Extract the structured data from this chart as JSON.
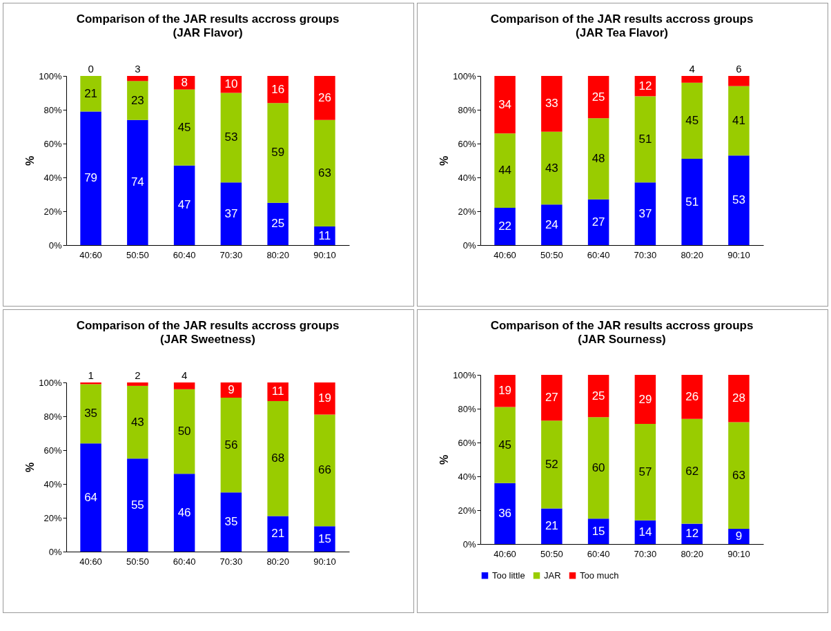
{
  "chart_data": [
    {
      "type": "bar",
      "title": "Comparison of the JAR results accross groups",
      "subtitle": "(JAR Flavor)",
      "ylabel": "%",
      "categories": [
        "40:60",
        "50:50",
        "60:40",
        "70:30",
        "80:20",
        "90:10"
      ],
      "stacked": true,
      "data_labels": true,
      "ylim": [
        0,
        100
      ],
      "yticks": [
        {
          "value": 0,
          "label": "0%"
        },
        {
          "value": 20,
          "label": "20%"
        },
        {
          "value": 40,
          "label": "40%"
        },
        {
          "value": 60,
          "label": "60%"
        },
        {
          "value": 80,
          "label": "80%"
        },
        {
          "value": 100,
          "label": "100%"
        }
      ],
      "legend": false,
      "series": [
        {
          "color": "#0000ff",
          "values": [
            79,
            74,
            47,
            37,
            25,
            11
          ]
        },
        {
          "color": "#99cc00",
          "values": [
            21,
            23,
            45,
            53,
            59,
            63
          ]
        },
        {
          "color": "#ff0000",
          "values": [
            0,
            3,
            8,
            10,
            16,
            26
          ]
        }
      ]
    },
    {
      "type": "bar",
      "title": "Comparison of the JAR results accross groups",
      "subtitle": "(JAR Tea Flavor)",
      "ylabel": "%",
      "categories": [
        "40:60",
        "50:50",
        "60:40",
        "70:30",
        "80:20",
        "90:10"
      ],
      "stacked": true,
      "data_labels": true,
      "ylim": [
        0,
        100
      ],
      "yticks": [
        {
          "value": 0,
          "label": "0%"
        },
        {
          "value": 20,
          "label": "20%"
        },
        {
          "value": 40,
          "label": "40%"
        },
        {
          "value": 60,
          "label": "60%"
        },
        {
          "value": 80,
          "label": "80%"
        },
        {
          "value": 100,
          "label": "100%"
        }
      ],
      "legend": false,
      "series": [
        {
          "color": "#0000ff",
          "values": [
            22,
            24,
            27,
            37,
            51,
            53
          ]
        },
        {
          "color": "#99cc00",
          "values": [
            44,
            43,
            48,
            51,
            45,
            41
          ]
        },
        {
          "color": "#ff0000",
          "values": [
            34,
            33,
            25,
            12,
            4,
            6
          ]
        }
      ]
    },
    {
      "type": "bar",
      "title": "Comparison of the JAR results accross groups",
      "subtitle": "(JAR Sweetness)",
      "ylabel": "%",
      "categories": [
        "40:60",
        "50:50",
        "60:40",
        "70:30",
        "80:20",
        "90:10"
      ],
      "stacked": true,
      "data_labels": true,
      "ylim": [
        0,
        100
      ],
      "yticks": [
        {
          "value": 0,
          "label": "0%"
        },
        {
          "value": 20,
          "label": "20%"
        },
        {
          "value": 40,
          "label": "40%"
        },
        {
          "value": 60,
          "label": "60%"
        },
        {
          "value": 80,
          "label": "80%"
        },
        {
          "value": 100,
          "label": "100%"
        }
      ],
      "legend": false,
      "series": [
        {
          "color": "#0000ff",
          "values": [
            64,
            55,
            46,
            35,
            21,
            15
          ]
        },
        {
          "color": "#99cc00",
          "values": [
            35,
            43,
            50,
            56,
            68,
            66
          ]
        },
        {
          "color": "#ff0000",
          "values": [
            1,
            2,
            4,
            9,
            11,
            19
          ]
        }
      ]
    },
    {
      "type": "bar",
      "title": "Comparison of the JAR results accross groups",
      "subtitle": "(JAR Sourness)",
      "ylabel": "%",
      "categories": [
        "40:60",
        "50:50",
        "60:40",
        "70:30",
        "80:20",
        "90:10"
      ],
      "stacked": true,
      "data_labels": true,
      "ylim": [
        0,
        100
      ],
      "yticks": [
        {
          "value": 0,
          "label": "0%"
        },
        {
          "value": 20,
          "label": "20%"
        },
        {
          "value": 40,
          "label": "40%"
        },
        {
          "value": 60,
          "label": "60%"
        },
        {
          "value": 80,
          "label": "80%"
        },
        {
          "value": 100,
          "label": "100%"
        }
      ],
      "legend": "bottom",
      "series": [
        {
          "name": "Too little",
          "color": "#0000ff",
          "values": [
            36,
            21,
            15,
            14,
            12,
            9
          ]
        },
        {
          "name": "JAR",
          "color": "#99cc00",
          "values": [
            45,
            52,
            60,
            57,
            62,
            63
          ]
        },
        {
          "name": "Too much",
          "color": "#ff0000",
          "values": [
            19,
            27,
            25,
            29,
            26,
            28
          ]
        }
      ]
    }
  ]
}
